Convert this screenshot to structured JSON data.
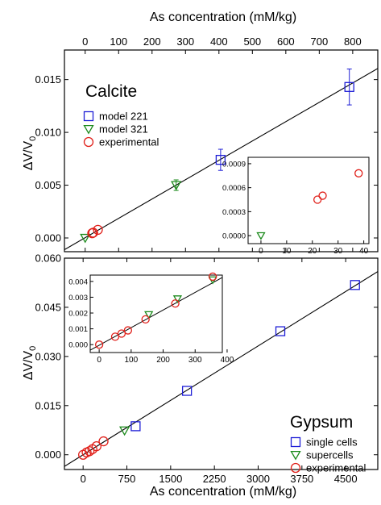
{
  "colors": {
    "blue": "#1f1fd6",
    "green": "#1b8a1b",
    "red": "#e0201a",
    "axis": "#000000"
  },
  "chart_data": [
    {
      "panel": "top",
      "type": "scatter",
      "title": "Calcite",
      "ylabel_main": "ΔV/V",
      "ylabel_sub": "0",
      "xlabel_top": "As concentration (mM/kg)",
      "xlim": [
        -62,
        875
      ],
      "ylim": [
        -0.0013,
        0.0178
      ],
      "xticks": [
        0,
        100,
        200,
        300,
        400,
        500,
        600,
        700,
        800
      ],
      "xtick_labels": [
        "0",
        "100",
        "200",
        "300",
        "400",
        "500",
        "600",
        "700",
        "800"
      ],
      "yticks": [
        0.0,
        0.005,
        0.01,
        0.015
      ],
      "ytick_labels": [
        "0.000",
        "0.005",
        "0.010",
        "0.015"
      ],
      "legend": [
        "model 221",
        "model 321",
        "experimental"
      ],
      "fit_line": {
        "x": [
          -62,
          875
        ],
        "y": [
          -0.00111,
          0.01605
        ]
      },
      "series": [
        {
          "name": "model 221",
          "marker": "square",
          "color": "blue",
          "points": [
            {
              "x": 405,
              "y": 0.0074,
              "err": 0.001
            },
            {
              "x": 790,
              "y": 0.0143,
              "err": 0.0017
            }
          ]
        },
        {
          "name": "model 321",
          "marker": "triangle-down",
          "color": "green",
          "points": [
            {
              "x": 0,
              "y": 0.0,
              "err": 0.0
            },
            {
              "x": 272,
              "y": 0.005,
              "err": 0.0005
            }
          ]
        },
        {
          "name": "experimental",
          "marker": "circle",
          "color": "red",
          "points": [
            {
              "x": 21,
              "y": 0.00045
            },
            {
              "x": 24,
              "y": 0.0005
            },
            {
              "x": 38,
              "y": 0.00077
            }
          ]
        }
      ],
      "inset": {
        "xlim": [
          -5,
          42
        ],
        "ylim": [
          -0.0001,
          0.00098
        ],
        "xticks": [
          0,
          10,
          20,
          30,
          40
        ],
        "xtick_labels": [
          "0",
          "10",
          "20",
          "30",
          "40"
        ],
        "yticks": [
          0.0,
          0.0003,
          0.0006,
          0.0009
        ],
        "ytick_labels": [
          "0.0000",
          "0.0003",
          "0.0006",
          "0.0009"
        ],
        "series": [
          {
            "name": "model 321",
            "marker": "triangle-down",
            "color": "green",
            "points": [
              {
                "x": 0,
                "y": 0.0
              }
            ]
          },
          {
            "name": "experimental",
            "marker": "circle",
            "color": "red",
            "points": [
              {
                "x": 22,
                "y": 0.00045
              },
              {
                "x": 24,
                "y": 0.0005
              },
              {
                "x": 38,
                "y": 0.00078
              }
            ]
          }
        ]
      }
    },
    {
      "panel": "bottom",
      "type": "scatter",
      "title": "Gypsum",
      "ylabel_main": "ΔV/V",
      "ylabel_sub": "0",
      "xlabel": "As concentration (mM/kg)",
      "xlim": [
        -320,
        5050
      ],
      "ylim": [
        -0.0045,
        0.06
      ],
      "xticks": [
        0,
        750,
        1500,
        2250,
        3000,
        3750,
        4500
      ],
      "xtick_labels": [
        "0",
        "750",
        "1500",
        "2250",
        "3000",
        "3750",
        "4500"
      ],
      "yticks": [
        0.0,
        0.015,
        0.03,
        0.045,
        0.06
      ],
      "ytick_labels": [
        "0.000",
        "0.015",
        "0.030",
        "0.045",
        "0.060"
      ],
      "legend": [
        "single cells",
        "supercells",
        "experimental"
      ],
      "fit_line": {
        "x": [
          -320,
          5050
        ],
        "y": [
          -0.00354,
          0.0559
        ]
      },
      "series": [
        {
          "name": "single cells",
          "marker": "square",
          "color": "blue",
          "points": [
            {
              "x": 900,
              "y": 0.0087
            },
            {
              "x": 1780,
              "y": 0.0195
            },
            {
              "x": 3380,
              "y": 0.0377
            },
            {
              "x": 4660,
              "y": 0.0518
            }
          ]
        },
        {
          "name": "supercells",
          "marker": "triangle-down",
          "color": "green",
          "points": [
            {
              "x": 710,
              "y": 0.0074
            }
          ]
        },
        {
          "name": "experimental",
          "marker": "circle",
          "color": "red",
          "points": [
            {
              "x": 0,
              "y": 0.0
            },
            {
              "x": 60,
              "y": 0.0007
            },
            {
              "x": 110,
              "y": 0.0011
            },
            {
              "x": 160,
              "y": 0.0017
            },
            {
              "x": 230,
              "y": 0.0026
            },
            {
              "x": 350,
              "y": 0.0041
            }
          ]
        }
      ],
      "inset": {
        "xlim": [
          -28,
          385
        ],
        "ylim": [
          -0.0005,
          0.0044
        ],
        "xticks": [
          0,
          100,
          200,
          300,
          400
        ],
        "xtick_labels": [
          "0",
          "100",
          "200",
          "300",
          "400"
        ],
        "yticks": [
          0.0,
          0.001,
          0.002,
          0.003,
          0.004
        ],
        "ytick_labels": [
          "0.000",
          "0.001",
          "0.002",
          "0.003",
          "0.004"
        ],
        "fit_line": {
          "x": [
            -28,
            385
          ],
          "y": [
            -0.00035,
            0.00425
          ]
        },
        "series": [
          {
            "name": "supercells",
            "marker": "triangle-down",
            "color": "green",
            "points": [
              {
                "x": 155,
                "y": 0.0019
              },
              {
                "x": 245,
                "y": 0.0029
              },
              {
                "x": 355,
                "y": 0.0041
              }
            ]
          },
          {
            "name": "experimental",
            "marker": "circle",
            "color": "red",
            "points": [
              {
                "x": 0,
                "y": 0.0
              },
              {
                "x": 50,
                "y": 0.0005
              },
              {
                "x": 70,
                "y": 0.0007
              },
              {
                "x": 90,
                "y": 0.0009
              },
              {
                "x": 145,
                "y": 0.0016
              },
              {
                "x": 238,
                "y": 0.0026
              },
              {
                "x": 355,
                "y": 0.0043
              }
            ]
          }
        ]
      }
    }
  ]
}
